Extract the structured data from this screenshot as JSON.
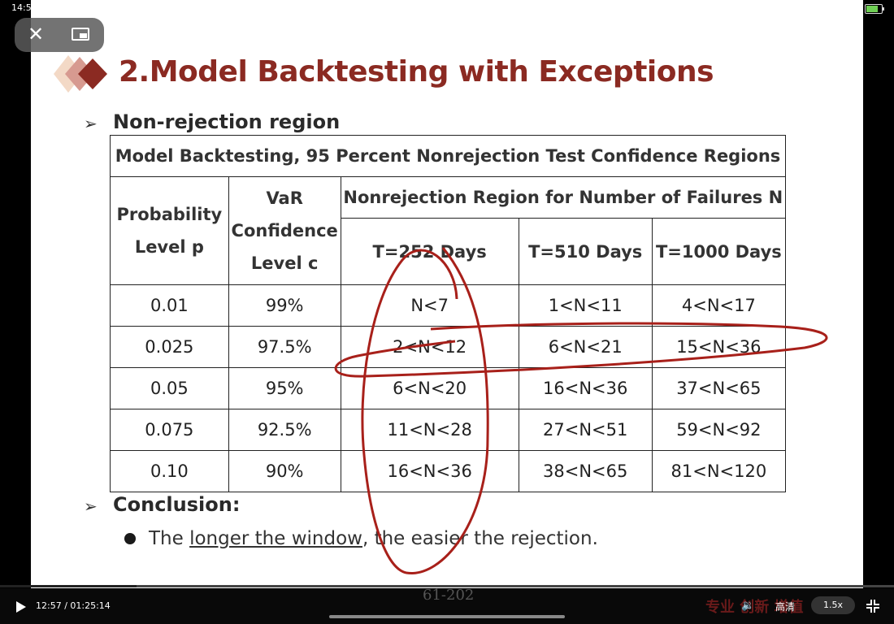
{
  "status_bar": {
    "time": "14:5"
  },
  "slide": {
    "title": "2.Model Backtesting with Exceptions",
    "section1": "Non-rejection region",
    "table": {
      "caption": "Model Backtesting, 95 Percent Nonrejection Test  Confidence Regions",
      "col_probability": "Probability Level p",
      "col_var": "VaR Confidence Level c",
      "col_region": "Nonrejection Region for Number of Failures N",
      "sub_cols": [
        "T=252 Days",
        "T=510 Days",
        "T=1000 Days"
      ],
      "rows": [
        [
          "0.01",
          "99%",
          "N<7",
          "1<N<11",
          "4<N<17"
        ],
        [
          "0.025",
          "97.5%",
          "2<N<12",
          "6<N<21",
          "15<N<36"
        ],
        [
          "0.05",
          "95%",
          "6<N<20",
          "16<N<36",
          "37<N<65"
        ],
        [
          "0.075",
          "92.5%",
          "11<N<28",
          "27<N<51",
          "59<N<92"
        ],
        [
          "0.10",
          "90%",
          "16<N<36",
          "38<N<65",
          "81<N<120"
        ]
      ]
    },
    "section2": "Conclusion:",
    "conclusion": {
      "pre": "The ",
      "underlined": "longer the window",
      "post": ", the easier the rejection."
    },
    "page_number": "61-202"
  },
  "player": {
    "time": "12:57 / 01:25:14",
    "quality": "高清",
    "speed": "1.5x",
    "watermark": "专业 创新 增值"
  },
  "colors": {
    "title": "#8b2a22",
    "annotation": "#a8201a"
  },
  "icons": [
    "close-icon",
    "exit-pip-icon",
    "play-icon",
    "volume-icon",
    "fullscreen-icon",
    "battery-icon"
  ]
}
